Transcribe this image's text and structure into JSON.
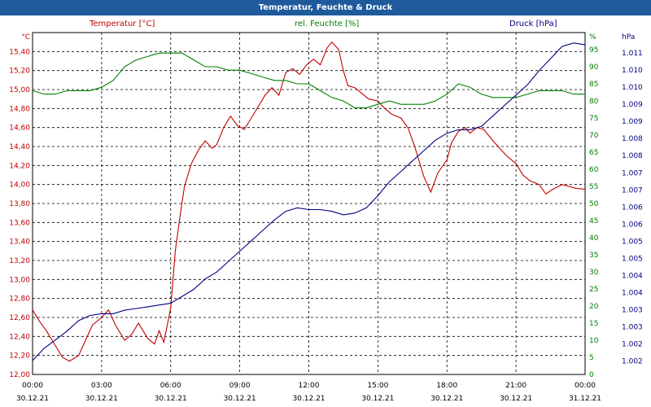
{
  "window": {
    "title": "Temperatur, Feuchte & Druck"
  },
  "colors": {
    "temperature": "#c00000",
    "humidity": "#008000",
    "pressure": "#000080",
    "titlebar": "#1e5a9c",
    "grid": "#000000"
  },
  "chart_data": {
    "type": "line",
    "grid": true,
    "x_ticks": [
      {
        "time": "00:00",
        "date": "30.12.21"
      },
      {
        "time": "03:00",
        "date": "30.12.21"
      },
      {
        "time": "06:00",
        "date": "30.12.21"
      },
      {
        "time": "09:00",
        "date": "30.12.21"
      },
      {
        "time": "12:00",
        "date": "30.12.21"
      },
      {
        "time": "15:00",
        "date": "30.12.21"
      },
      {
        "time": "18:00",
        "date": "30.12.21"
      },
      {
        "time": "21:00",
        "date": "30.12.21"
      },
      {
        "time": "00:00",
        "date": "31.12.21"
      }
    ],
    "x_range_hours": [
      0,
      24
    ],
    "axes": {
      "left": {
        "unit": "°C",
        "range": [
          12.0,
          15.6
        ],
        "ticks": [
          "15,40",
          "15,20",
          "15,00",
          "14,80",
          "14,60",
          "14,40",
          "14,20",
          "14,00",
          "13,80",
          "13,60",
          "13,40",
          "13,20",
          "13,00",
          "12,80",
          "12,60",
          "12,40",
          "12,20",
          "12,00"
        ]
      },
      "right_humidity": {
        "unit": "%",
        "range": [
          0,
          100
        ],
        "ticks": [
          "95",
          "90",
          "85",
          "80",
          "75",
          "70",
          "65",
          "60",
          "55",
          "50",
          "45",
          "40",
          "35",
          "30",
          "25",
          "20",
          "15",
          "10",
          "5",
          "0"
        ]
      },
      "right_pressure": {
        "unit": "hPa",
        "range": [
          1001.55,
          1011.4
        ],
        "ticks": [
          "1.011",
          "1.010",
          "1.010",
          "1.009",
          "1.009",
          "1.008",
          "1.008",
          "1.007",
          "1.007",
          "1.006",
          "1.006",
          "1.005",
          "1.005",
          "1.004",
          "1.004",
          "1.003",
          "1.003",
          "1.002",
          "1.002"
        ]
      }
    },
    "series": [
      {
        "name": "Temperatur [°C]",
        "axis": "left",
        "x": [
          0,
          0.3,
          0.6,
          1.0,
          1.3,
          1.6,
          2.0,
          2.3,
          2.6,
          3.0,
          3.3,
          3.6,
          4.0,
          4.3,
          4.6,
          5.0,
          5.3,
          5.5,
          5.7,
          6.0,
          6.2,
          6.4,
          6.6,
          6.9,
          7.2,
          7.5,
          7.8,
          8.0,
          8.3,
          8.6,
          8.9,
          9.2,
          9.5,
          9.8,
          10.1,
          10.4,
          10.7,
          11.0,
          11.3,
          11.6,
          11.9,
          12.2,
          12.5,
          12.8,
          13.0,
          13.3,
          13.5,
          13.7,
          14.0,
          14.3,
          14.6,
          15.0,
          15.3,
          15.6,
          16.0,
          16.3,
          16.6,
          17.0,
          17.3,
          17.6,
          18.0,
          18.2,
          18.5,
          18.8,
          19.0,
          19.3,
          19.6,
          20.0,
          20.3,
          20.6,
          21.0,
          21.3,
          21.6,
          22.0,
          22.3,
          22.6,
          23.0,
          23.3,
          23.6,
          24.0
        ],
        "values": [
          12.68,
          12.56,
          12.46,
          12.3,
          12.18,
          12.14,
          12.2,
          12.36,
          12.52,
          12.6,
          12.68,
          12.52,
          12.36,
          12.42,
          12.54,
          12.38,
          12.32,
          12.46,
          12.34,
          12.7,
          13.3,
          13.66,
          13.98,
          14.22,
          14.36,
          14.46,
          14.38,
          14.42,
          14.6,
          14.72,
          14.62,
          14.58,
          14.7,
          14.82,
          14.94,
          15.02,
          14.94,
          15.18,
          15.22,
          15.16,
          15.26,
          15.32,
          15.26,
          15.44,
          15.5,
          15.42,
          15.2,
          15.04,
          15.02,
          14.96,
          14.9,
          14.88,
          14.8,
          14.74,
          14.7,
          14.6,
          14.4,
          14.08,
          13.92,
          14.12,
          14.26,
          14.44,
          14.56,
          14.6,
          14.54,
          14.6,
          14.58,
          14.46,
          14.38,
          14.3,
          14.22,
          14.1,
          14.04,
          14.0,
          13.9,
          13.95,
          14.0,
          13.98,
          13.96,
          13.95
        ],
        "color": "#c00000"
      },
      {
        "name": "rel. Feuchte [%]",
        "axis": "right_humidity",
        "x": [
          0,
          0.5,
          1.0,
          1.5,
          2.0,
          2.5,
          3.0,
          3.5,
          4.0,
          4.5,
          5.0,
          5.5,
          6.0,
          6.5,
          7.0,
          7.5,
          8.0,
          8.5,
          9.0,
          9.5,
          10.0,
          10.5,
          11.0,
          11.5,
          12.0,
          12.5,
          13.0,
          13.5,
          14.0,
          14.5,
          15.0,
          15.5,
          16.0,
          16.5,
          17.0,
          17.5,
          18.0,
          18.5,
          19.0,
          19.5,
          20.0,
          20.5,
          21.0,
          21.5,
          22.0,
          22.5,
          23.0,
          23.5,
          24.0
        ],
        "values": [
          83,
          82,
          82,
          83,
          83,
          83,
          84,
          86,
          90,
          92,
          93,
          94,
          94,
          94,
          92,
          90,
          90,
          89,
          89,
          88,
          87,
          86,
          86,
          85,
          85,
          83,
          81,
          80,
          78,
          78,
          79,
          80,
          79,
          79,
          79,
          80,
          82,
          85,
          84,
          82,
          81,
          81,
          81,
          82,
          83,
          83,
          83,
          82,
          82
        ],
        "color": "#008000"
      },
      {
        "name": "Druck [hPa]",
        "axis": "right_pressure",
        "x": [
          0,
          0.5,
          1.0,
          1.5,
          2.0,
          2.5,
          3.0,
          3.5,
          4.0,
          4.5,
          5.0,
          5.5,
          6.0,
          6.5,
          7.0,
          7.5,
          8.0,
          8.5,
          9.0,
          9.5,
          10.0,
          10.5,
          11.0,
          11.5,
          12.0,
          12.5,
          13.0,
          13.5,
          14.0,
          14.5,
          15.0,
          15.5,
          16.0,
          16.5,
          17.0,
          17.5,
          18.0,
          18.5,
          19.0,
          19.5,
          20.0,
          20.5,
          21.0,
          21.5,
          22.0,
          22.5,
          23.0,
          23.5,
          24.0
        ],
        "values": [
          1001.95,
          1002.3,
          1002.55,
          1002.8,
          1003.1,
          1003.25,
          1003.3,
          1003.3,
          1003.4,
          1003.45,
          1003.5,
          1003.55,
          1003.6,
          1003.8,
          1004.0,
          1004.3,
          1004.5,
          1004.8,
          1005.1,
          1005.4,
          1005.7,
          1006.0,
          1006.25,
          1006.35,
          1006.3,
          1006.3,
          1006.25,
          1006.15,
          1006.2,
          1006.35,
          1006.7,
          1007.1,
          1007.4,
          1007.7,
          1008.0,
          1008.3,
          1008.5,
          1008.6,
          1008.6,
          1008.7,
          1009.0,
          1009.3,
          1009.6,
          1009.9,
          1010.3,
          1010.65,
          1011.0,
          1011.1,
          1011.05
        ],
        "color": "#000080"
      }
    ]
  }
}
